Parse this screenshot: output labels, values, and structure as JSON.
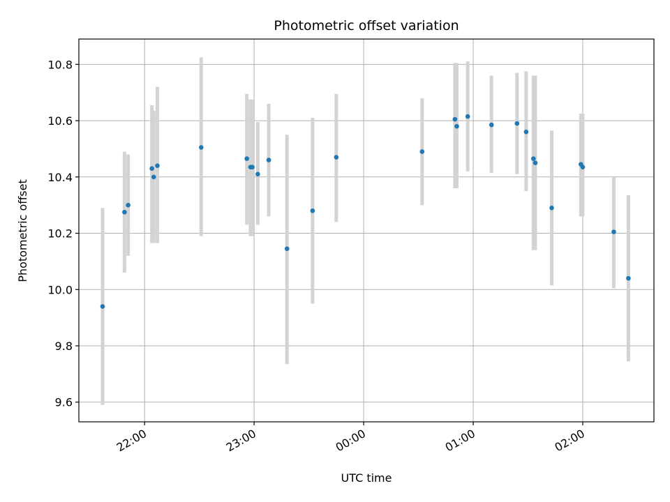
{
  "chart_data": {
    "type": "scatter",
    "title": "Photometric offset variation",
    "xlabel": "UTC time",
    "ylabel": "Photometric offset",
    "x_tick_labels": [
      "22:00",
      "23:00",
      "00:00",
      "01:00",
      "02:00"
    ],
    "x_ticks_hours": [
      22,
      23,
      24,
      25,
      26
    ],
    "xlim_hours": [
      21.4,
      26.65
    ],
    "y_ticks": [
      9.6,
      9.8,
      10.0,
      10.2,
      10.4,
      10.6,
      10.8
    ],
    "ylim": [
      9.53,
      10.89
    ],
    "grid": true,
    "colors": {
      "point": "#1f77b4",
      "errorbar": "#d3d3d3",
      "grid": "#b0b0b0"
    },
    "points": [
      {
        "t": "21:37",
        "y": 9.94,
        "lo": 9.59,
        "hi": 10.29
      },
      {
        "t": "21:49",
        "y": 10.275,
        "lo": 10.06,
        "hi": 10.49
      },
      {
        "t": "21:51",
        "y": 10.3,
        "lo": 10.12,
        "hi": 10.48
      },
      {
        "t": "22:04",
        "y": 10.43,
        "lo": 10.165,
        "hi": 10.655
      },
      {
        "t": "22:05",
        "y": 10.4,
        "lo": 10.165,
        "hi": 10.635
      },
      {
        "t": "22:07",
        "y": 10.44,
        "lo": 10.165,
        "hi": 10.72
      },
      {
        "t": "22:31",
        "y": 10.505,
        "lo": 10.19,
        "hi": 10.825
      },
      {
        "t": "22:56",
        "y": 10.465,
        "lo": 10.23,
        "hi": 10.695
      },
      {
        "t": "22:58",
        "y": 10.435,
        "lo": 10.19,
        "hi": 10.675
      },
      {
        "t": "22:59",
        "y": 10.435,
        "lo": 10.19,
        "hi": 10.675
      },
      {
        "t": "23:02",
        "y": 10.41,
        "lo": 10.23,
        "hi": 10.595
      },
      {
        "t": "23:08",
        "y": 10.46,
        "lo": 10.26,
        "hi": 10.66
      },
      {
        "t": "23:18",
        "y": 10.145,
        "lo": 9.735,
        "hi": 10.55
      },
      {
        "t": "23:32",
        "y": 10.28,
        "lo": 9.95,
        "hi": 10.61
      },
      {
        "t": "23:45",
        "y": 10.47,
        "lo": 10.24,
        "hi": 10.695
      },
      {
        "t": "00:32",
        "y": 10.49,
        "lo": 10.3,
        "hi": 10.68
      },
      {
        "t": "00:50",
        "y": 10.605,
        "lo": 10.36,
        "hi": 10.805
      },
      {
        "t": "00:51",
        "y": 10.58,
        "lo": 10.36,
        "hi": 10.805
      },
      {
        "t": "00:57",
        "y": 10.615,
        "lo": 10.42,
        "hi": 10.81
      },
      {
        "t": "01:10",
        "y": 10.585,
        "lo": 10.415,
        "hi": 10.76
      },
      {
        "t": "01:24",
        "y": 10.59,
        "lo": 10.41,
        "hi": 10.77
      },
      {
        "t": "01:29",
        "y": 10.56,
        "lo": 10.35,
        "hi": 10.775
      },
      {
        "t": "01:33",
        "y": 10.465,
        "lo": 10.14,
        "hi": 10.76
      },
      {
        "t": "01:34",
        "y": 10.45,
        "lo": 10.14,
        "hi": 10.76
      },
      {
        "t": "01:43",
        "y": 10.29,
        "lo": 10.015,
        "hi": 10.565
      },
      {
        "t": "01:59",
        "y": 10.445,
        "lo": 10.26,
        "hi": 10.625
      },
      {
        "t": "02:00",
        "y": 10.435,
        "lo": 10.26,
        "hi": 10.625
      },
      {
        "t": "02:17",
        "y": 10.205,
        "lo": 10.005,
        "hi": 10.4
      },
      {
        "t": "02:25",
        "y": 10.04,
        "lo": 9.745,
        "hi": 10.335
      }
    ]
  }
}
